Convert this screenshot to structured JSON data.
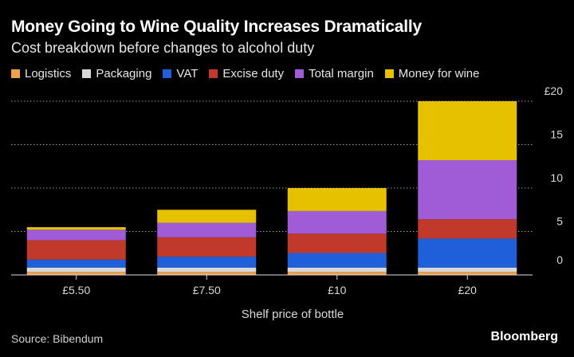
{
  "header": {
    "title": "Money Going to Wine Quality Increases Dramatically",
    "subtitle": "Cost breakdown before changes to alcohol duty"
  },
  "footer": {
    "source": "Source: Bibendum",
    "brand": "Bloomberg"
  },
  "chart_data": {
    "type": "bar",
    "stacked": true,
    "categories": [
      "£5.50",
      "£7.50",
      "£10",
      "£20"
    ],
    "xlabel": "Shelf price of bottle",
    "ylabel": "",
    "ylim": [
      0,
      20
    ],
    "yticks": [
      0,
      5,
      10,
      15,
      20
    ],
    "ytick_labels": [
      "0",
      "5",
      "10",
      "15",
      "£20"
    ],
    "y_axis_side": "right",
    "grid": true,
    "legend_position": "top-left",
    "series": [
      {
        "name": "Logistics",
        "color": "#f0a04b",
        "values": [
          0.35,
          0.35,
          0.35,
          0.35
        ]
      },
      {
        "name": "Packaging",
        "color": "#d9d9d9",
        "values": [
          0.5,
          0.5,
          0.5,
          0.5
        ]
      },
      {
        "name": "VAT",
        "color": "#1f5fd9",
        "values": [
          0.92,
          1.25,
          1.67,
          3.33
        ]
      },
      {
        "name": "Excise duty",
        "color": "#c0392b",
        "values": [
          2.23,
          2.23,
          2.23,
          2.23
        ]
      },
      {
        "name": "Total margin",
        "color": "#a05cd6",
        "values": [
          1.2,
          1.67,
          2.6,
          6.8
        ]
      },
      {
        "name": "Money for wine",
        "color": "#e5c100",
        "values": [
          0.3,
          1.5,
          2.65,
          6.79
        ]
      }
    ]
  }
}
